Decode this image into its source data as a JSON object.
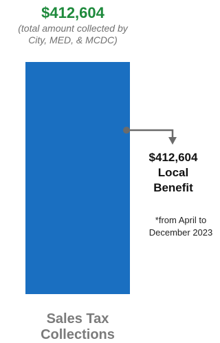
{
  "chart_data": {
    "type": "bar",
    "categories": [
      "Sales Tax Collections"
    ],
    "values": [
      412604
    ],
    "total_label": "$412,604",
    "total_note_lines": [
      "(total amount collected by",
      "City, MED, & MCDC)"
    ],
    "local_benefit_lines": [
      "$412,604",
      "Local",
      "Benefit"
    ],
    "footnote_lines": [
      "*from April to",
      "December 2023"
    ],
    "category_label_lines": [
      "Sales Tax",
      "Collections"
    ]
  },
  "colors": {
    "bar": "#1a6fc1",
    "total_value": "#1e8a3c",
    "total_note": "#707070",
    "category_label": "#7b7b7b",
    "connector": "#6b6b6b"
  }
}
